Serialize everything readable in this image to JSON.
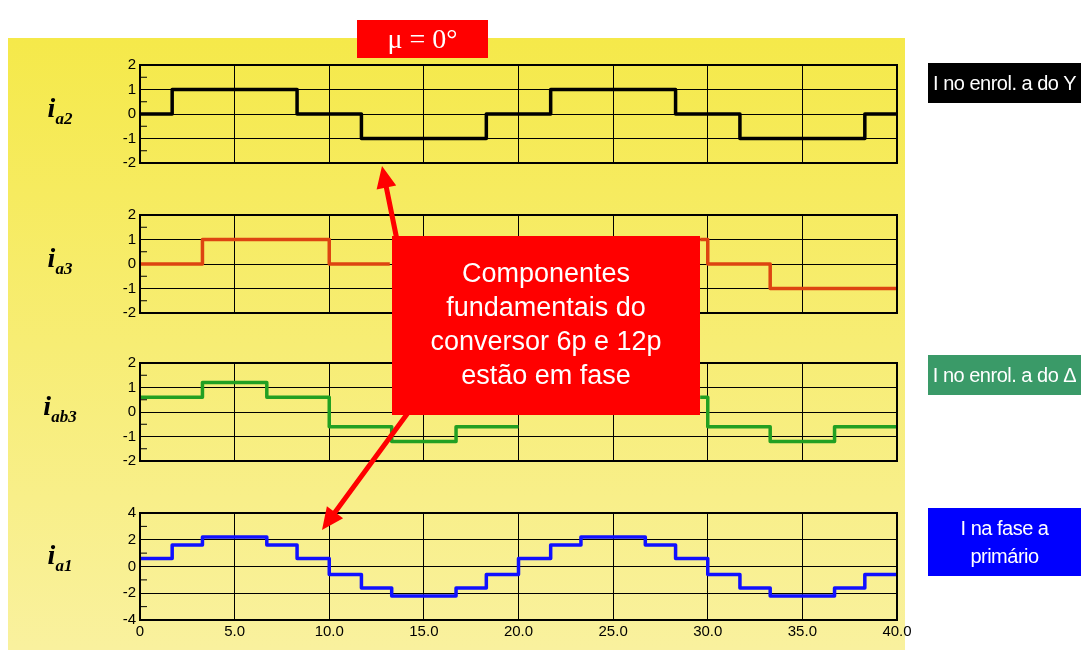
{
  "chart_data": [
    {
      "type": "step",
      "title": "μ = 0°",
      "ylabel": "i$_{a2}$",
      "xlim": [
        0,
        40
      ],
      "xticks": [
        {
          "value": 5,
          "label": null
        },
        {
          "value": 10,
          "label": null
        },
        {
          "value": 15,
          "label": null
        },
        {
          "value": 20,
          "label": null
        },
        {
          "value": 25,
          "label": null
        },
        {
          "value": 30,
          "label": null
        },
        {
          "value": 35,
          "label": null
        }
      ],
      "ylim": [
        -2,
        2
      ],
      "yticks": [
        -2,
        {
          "value": -1.5,
          "label": null
        },
        -1,
        {
          "value": -0.5,
          "label": null
        },
        0,
        {
          "value": 0.5,
          "label": null
        },
        1,
        {
          "value": 1.5,
          "label": null
        },
        2
      ],
      "grid": true,
      "tick_labels": "y",
      "series": [
        {
          "color": "#000000",
          "x": [
            0,
            1.7,
            8.3,
            11.7,
            18.3,
            21.7,
            28.3,
            31.7,
            38.3,
            40
          ],
          "values": [
            0,
            1,
            0,
            -1,
            0,
            1,
            0,
            -1,
            0,
            0
          ]
        }
      ],
      "annotations": [
        "I no enrol. a do Y"
      ]
    },
    {
      "type": "step",
      "ylabel": "i$_{a3}$",
      "xlim": [
        0,
        40
      ],
      "xticks": [
        {
          "value": 5,
          "label": null
        },
        {
          "value": 10,
          "label": null
        },
        {
          "value": 15,
          "label": null
        },
        {
          "value": 20,
          "label": null
        },
        {
          "value": 25,
          "label": null
        },
        {
          "value": 30,
          "label": null
        },
        {
          "value": 35,
          "label": null
        }
      ],
      "ylim": [
        -2,
        2
      ],
      "yticks": [
        -2,
        {
          "value": -1.5,
          "label": null
        },
        -1,
        {
          "value": -0.5,
          "label": null
        },
        0,
        {
          "value": 0.5,
          "label": null
        },
        1,
        {
          "value": 1.5,
          "label": null
        },
        2
      ],
      "grid": true,
      "tick_labels": "y",
      "series": [
        {
          "color": "#dd4411",
          "x": [
            0,
            3.3,
            10,
            13.2,
            20,
            29.6,
            30,
            33.3,
            40
          ],
          "values": [
            0,
            1,
            0,
            0,
            null,
            1,
            0,
            -1,
            -1
          ]
        }
      ],
      "annotations": [
        "Componentes fundamentais do conversor 6p e 12p estão em fase"
      ]
    },
    {
      "type": "step",
      "ylabel": "i$_{ab3}$",
      "xlim": [
        0,
        40
      ],
      "xticks": [
        {
          "value": 5,
          "label": null
        },
        {
          "value": 10,
          "label": null
        },
        {
          "value": 15,
          "label": null
        },
        {
          "value": 20,
          "label": null
        },
        {
          "value": 25,
          "label": null
        },
        {
          "value": 30,
          "label": null
        },
        {
          "value": 35,
          "label": null
        }
      ],
      "ylim": [
        -2,
        2
      ],
      "yticks": [
        -2,
        {
          "value": -1.5,
          "label": null
        },
        -1,
        {
          "value": -0.5,
          "label": null
        },
        0,
        {
          "value": 0.5,
          "label": null
        },
        1,
        {
          "value": 1.5,
          "label": null
        },
        2
      ],
      "grid": true,
      "tick_labels": "y",
      "series": [
        {
          "color": "#22a022",
          "x": [
            0,
            3.3,
            6.7,
            10,
            13.3,
            16.7,
            20,
            25,
            29.6,
            30,
            33.3,
            36.7,
            40
          ],
          "values": [
            0.6,
            1.2,
            0.6,
            -0.6,
            -1.2,
            -0.6,
            -0.6,
            null,
            0.6,
            -0.6,
            -1.2,
            -0.6,
            -0.6
          ]
        }
      ],
      "annotations": [
        "I no enrol. a do Δ"
      ]
    },
    {
      "type": "step",
      "ylabel": "i$_{a1}$",
      "xlim": [
        0,
        40
      ],
      "xticks": [
        0,
        {
          "value": 5,
          "label": "5.0"
        },
        {
          "value": 10,
          "label": "10.0"
        },
        {
          "value": 15,
          "label": "15.0"
        },
        {
          "value": 20,
          "label": "20.0"
        },
        {
          "value": 25,
          "label": "25.0"
        },
        {
          "value": 30,
          "label": "30.0"
        },
        {
          "value": 35,
          "label": "35.0"
        },
        {
          "value": 40,
          "label": "40.0"
        }
      ],
      "ylim": [
        -4,
        4
      ],
      "yticks": [
        -4,
        {
          "value": -3,
          "label": null
        },
        -2,
        {
          "value": -1,
          "label": null
        },
        0,
        {
          "value": 1,
          "label": null
        },
        2,
        {
          "value": 3,
          "label": null
        },
        4
      ],
      "grid": true,
      "series": [
        {
          "color": "#1010ff",
          "x": [
            0,
            1.7,
            3.3,
            6.7,
            8.3,
            10,
            11.7,
            13.3,
            16.7,
            18.3,
            20,
            21.7,
            23.3,
            26.7,
            28.3,
            30,
            31.7,
            33.3,
            36.7,
            38.3,
            40
          ],
          "values": [
            0.6,
            1.6,
            2.2,
            1.6,
            0.6,
            -0.6,
            -1.6,
            -2.2,
            -1.6,
            -0.6,
            0.6,
            1.6,
            2.2,
            1.6,
            0.6,
            -0.6,
            -1.6,
            -2.2,
            -1.6,
            -0.6,
            -0.6
          ]
        }
      ],
      "annotations": [
        "I na fase a primário"
      ]
    }
  ]
}
